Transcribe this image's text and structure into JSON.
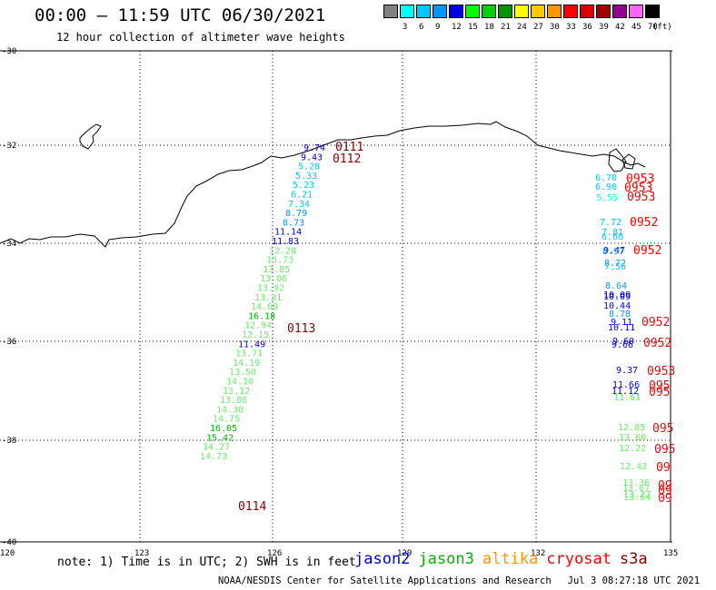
{
  "header": {
    "title": "00:00 – 11:59 UTC 06/30/2021",
    "subtitle": "12 hour collection of altimeter wave heights"
  },
  "color_scale": {
    "unit": "(ft)",
    "bins": [
      {
        "label": "",
        "color": "#808080"
      },
      {
        "label": "3",
        "color": "#00ffff"
      },
      {
        "label": "6",
        "color": "#00c8ff"
      },
      {
        "label": "9",
        "color": "#0096ff"
      },
      {
        "label": "12",
        "color": "#0000e6"
      },
      {
        "label": "15",
        "color": "#00ff00"
      },
      {
        "label": "18",
        "color": "#00d200"
      },
      {
        "label": "21",
        "color": "#009600"
      },
      {
        "label": "24",
        "color": "#ffff00"
      },
      {
        "label": "27",
        "color": "#ffc800"
      },
      {
        "label": "30",
        "color": "#ff9600"
      },
      {
        "label": "33",
        "color": "#ff0000"
      },
      {
        "label": "36",
        "color": "#dc0000"
      },
      {
        "label": "39",
        "color": "#a00000"
      },
      {
        "label": "42",
        "color": "#960096"
      },
      {
        "label": "45",
        "color": "#ff64ff"
      },
      {
        "label": "70",
        "color": "#000000"
      }
    ]
  },
  "axes": {
    "lon_ticks": [
      "120",
      "123",
      "126",
      "129",
      "132",
      "135"
    ],
    "lat_ticks": [
      "-30",
      "-32",
      "-34",
      "-36",
      "-38",
      "-40"
    ]
  },
  "tracks": [
    {
      "satellite": "jason2",
      "start": [
        330,
        166
      ],
      "step": [
        -5,
        10.3
      ],
      "x_jitter": [
        0,
        0,
        0,
        0,
        0,
        0,
        0,
        0,
        0,
        1,
        0,
        0,
        0,
        1,
        0,
        0,
        0,
        1,
        0,
        0,
        0,
        1,
        0,
        0,
        0,
        0,
        0,
        0,
        0,
        0,
        0,
        0,
        0,
        0,
        0,
        0,
        0,
        0,
        0,
        0,
        0,
        0
      ],
      "points": [
        {
          "v": "9.74",
          "c": "#0000e6"
        },
        {
          "v": "9.43",
          "c": "#0000e6"
        },
        {
          "v": "5.28",
          "c": "#00c8ff"
        },
        {
          "v": "5.33",
          "c": "#00c8ff"
        },
        {
          "v": "5.23",
          "c": "#00c8ff"
        },
        {
          "v": "6.21",
          "c": "#00c8ff"
        },
        {
          "v": "7.34",
          "c": "#00c8ff"
        },
        {
          "v": "8.79",
          "c": "#0096ff"
        },
        {
          "v": "8.73",
          "c": "#0096ff"
        },
        {
          "v": "11.14",
          "c": "#0000e6"
        },
        {
          "v": "11.83",
          "c": "#0000e6"
        },
        {
          "v": "12.28",
          "c": "#66ee66"
        },
        {
          "v": "13.73",
          "c": "#66ee66"
        },
        {
          "v": "13.85",
          "c": "#66ee66"
        },
        {
          "v": "13.06",
          "c": "#66ee66"
        },
        {
          "v": "13.92",
          "c": "#66ee66"
        },
        {
          "v": "13.31",
          "c": "#66ee66"
        },
        {
          "v": "14.69",
          "c": "#66ee66"
        },
        {
          "v": "16.18",
          "c": "#00b400"
        },
        {
          "v": "12.94",
          "c": "#66ee66"
        },
        {
          "v": "12.15",
          "c": "#66ee66"
        },
        {
          "v": "11.49",
          "c": "#0000e6"
        },
        {
          "v": "13.71",
          "c": "#66ee66"
        },
        {
          "v": "14.19",
          "c": "#66ee66"
        },
        {
          "v": "13.50",
          "c": "#66ee66"
        },
        {
          "v": "14.10",
          "c": "#66ee66"
        },
        {
          "v": "13.12",
          "c": "#66ee66"
        },
        {
          "v": "13.86",
          "c": "#66ee66"
        },
        {
          "v": "14.30",
          "c": "#66ee66"
        },
        {
          "v": "14.75",
          "c": "#66ee66"
        },
        {
          "v": "16.05",
          "c": "#00b400"
        },
        {
          "v": "15.42",
          "c": "#00b400"
        },
        {
          "v": "14.27",
          "c": "#66ee66"
        },
        {
          "v": "14.73",
          "c": "#66ee66"
        }
      ]
    }
  ],
  "track_points": [
    {
      "v": "9.74",
      "c": "#0000e6"
    },
    {
      "v": "9.43",
      "c": "#0000e6"
    },
    {
      "v": "5.28",
      "c": "#00c8ff"
    },
    {
      "v": "5.33",
      "c": "#00c8ff"
    },
    {
      "v": "5.23",
      "c": "#00c8ff"
    },
    {
      "v": "6.21",
      "c": "#00c8ff"
    },
    {
      "v": "7.34",
      "c": "#00c8ff"
    },
    {
      "v": "8.79",
      "c": "#0096ff"
    },
    {
      "v": "8.73",
      "c": "#0096ff"
    },
    {
      "v": "11.14",
      "c": "#0000e6"
    },
    {
      "v": "11.83",
      "c": "#0000e6"
    },
    {
      "v": "12.28",
      "c": "#66ee66"
    },
    {
      "v": "13.73",
      "c": "#66ee66"
    },
    {
      "v": "13.85",
      "c": "#66ee66"
    },
    {
      "v": "13.06",
      "c": "#66ee66"
    },
    {
      "v": "13.92",
      "c": "#66ee66"
    },
    {
      "v": "13.31",
      "c": "#66ee66"
    },
    {
      "v": "14.69",
      "c": "#66ee66"
    },
    {
      "v": "16.18",
      "c": "#00b400"
    },
    {
      "v": "12.94",
      "c": "#66ee66"
    },
    {
      "v": "12.15",
      "c": "#66ee66"
    },
    {
      "v": "11.49",
      "c": "#0000e6"
    },
    {
      "v": "13.71",
      "c": "#66ee66"
    },
    {
      "v": "14.19",
      "c": "#66ee66"
    },
    {
      "v": "13.50",
      "c": "#66ee66"
    },
    {
      "v": "14.10",
      "c": "#66ee66"
    },
    {
      "v": "13.12",
      "c": "#66ee66"
    },
    {
      "v": "13.86",
      "c": "#66ee66"
    },
    {
      "v": "14.30",
      "c": "#66ee66"
    },
    {
      "v": "14.75",
      "c": "#66ee66"
    },
    {
      "v": "16.05",
      "c": "#00b400"
    },
    {
      "v": "15.42",
      "c": "#00b400"
    },
    {
      "v": "14.27",
      "c": "#66ee66"
    },
    {
      "v": "14.73",
      "c": "#66ee66"
    }
  ],
  "time_labels": [
    {
      "v": "0111",
      "c": "#8b0000"
    },
    {
      "v": "0112",
      "c": "#8b0000"
    },
    {
      "v": "0113",
      "c": "#8b0000"
    },
    {
      "v": "0114",
      "c": "#8b0000"
    }
  ],
  "east_points": [
    {
      "v": "6.70",
      "c": "#00c8ff"
    },
    {
      "v": "6.90",
      "c": "#00c8ff"
    },
    {
      "v": "5.55",
      "c": "#00ffff"
    },
    {
      "v": "7.72",
      "c": "#00c8ff"
    },
    {
      "v": "7.81",
      "c": "#00c8ff"
    },
    {
      "v": "6.66",
      "c": "#00c8ff"
    },
    {
      "v": "9.47",
      "c": "#0000e6"
    },
    {
      "v": "8.97",
      "c": "#0096ff"
    },
    {
      "v": "8.72",
      "c": "#0096ff"
    },
    {
      "v": "7.56",
      "c": "#00c8ff"
    },
    {
      "v": "8.64",
      "c": "#0096ff"
    },
    {
      "v": "10.09",
      "c": "#0000e6"
    },
    {
      "v": "10.09",
      "c": "#0000e6"
    },
    {
      "v": "10.44",
      "c": "#0000e6"
    },
    {
      "v": "8.78",
      "c": "#0096ff"
    },
    {
      "v": "9.11",
      "c": "#0000e6"
    },
    {
      "v": "10.11",
      "c": "#0000e6"
    },
    {
      "v": "9.60",
      "c": "#0000e6"
    },
    {
      "v": "9.66",
      "c": "#0000e6"
    },
    {
      "v": "9.37",
      "c": "#0000e6"
    },
    {
      "v": "11.66",
      "c": "#0000e6"
    },
    {
      "v": "11.12",
      "c": "#0000e6"
    },
    {
      "v": "11.61",
      "c": "#66ee66"
    },
    {
      "v": "12.85",
      "c": "#66ee66"
    },
    {
      "v": "13.60",
      "c": "#66ee66"
    },
    {
      "v": "12.22",
      "c": "#66ee66"
    },
    {
      "v": "12.42",
      "c": "#66ee66"
    },
    {
      "v": "13.36",
      "c": "#66ee66"
    },
    {
      "v": "13.67",
      "c": "#66ee66"
    },
    {
      "v": "13.27",
      "c": "#66ee66"
    },
    {
      "v": "13.64",
      "c": "#66ee66"
    }
  ],
  "east_times": [
    {
      "v": "0953",
      "c": "#ff0000"
    },
    {
      "v": "0953",
      "c": "#ff0000"
    },
    {
      "v": "0953",
      "c": "#ff0000"
    },
    {
      "v": "0952",
      "c": "#ff0000"
    },
    {
      "v": "0952",
      "c": "#ff0000"
    },
    {
      "v": "0952",
      "c": "#ff0000"
    },
    {
      "v": "0952",
      "c": "#ff0000"
    },
    {
      "v": "0953",
      "c": "#ff0000"
    },
    {
      "v": "095",
      "c": "#ff0000"
    },
    {
      "v": "095",
      "c": "#ff0000"
    },
    {
      "v": "095",
      "c": "#ff0000"
    },
    {
      "v": "095",
      "c": "#ff0000"
    },
    {
      "v": "09",
      "c": "#ff0000"
    },
    {
      "v": "09",
      "c": "#ff0000"
    },
    {
      "v": "09",
      "c": "#ff0000"
    },
    {
      "v": "09",
      "c": "#ff0000"
    }
  ],
  "footer": {
    "note": "note: 1) Time is in UTC; 2) SWH is in feet",
    "legend": [
      {
        "name": "jason2",
        "color": "#0000e6"
      },
      {
        "name": "jason3",
        "color": "#00b400"
      },
      {
        "name": "altika",
        "color": "#ff9600"
      },
      {
        "name": "cryosat",
        "color": "#ff0000"
      },
      {
        "name": "s3a",
        "color": "#8b0000"
      }
    ],
    "credit_org": "NOAA/NESDIS Center for Satellite Applications and Research",
    "credit_time": "Jul 3 08:27:18 UTC 2021"
  }
}
